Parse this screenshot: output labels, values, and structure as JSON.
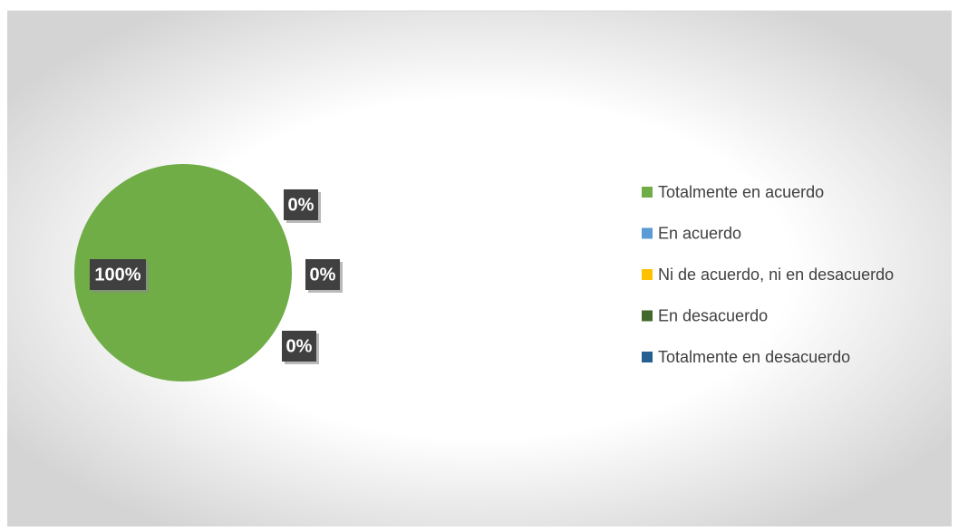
{
  "chart_data": {
    "type": "pie",
    "categories": [
      "Totalmente en acuerdo",
      "En acuerdo",
      "Ni de acuerdo, ni en desacuerdo",
      "En desacuerdo",
      "Totalmente en desacuerdo"
    ],
    "values": [
      100,
      0,
      0,
      0,
      0
    ],
    "value_labels": [
      "100%",
      "0%",
      "0%",
      "0%",
      null
    ],
    "colors": [
      "#70ad47",
      "#5b9bd5",
      "#ffc000",
      "#43682b",
      "#255e91"
    ],
    "legend": "right"
  }
}
